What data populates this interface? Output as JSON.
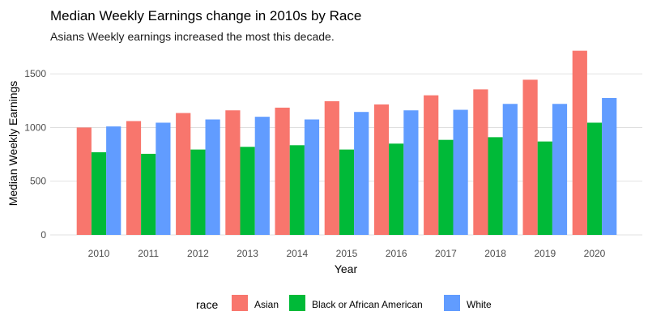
{
  "chart_data": {
    "type": "bar",
    "title": "Median Weekly Earnings change in 2010s by Race",
    "subtitle": "Asians Weekly earnings increased the most this decade.",
    "xlabel": "Year",
    "ylabel": "Median Weekly Earnings",
    "categories": [
      "2010",
      "2011",
      "2012",
      "2013",
      "2014",
      "2015",
      "2016",
      "2017",
      "2018",
      "2019",
      "2020"
    ],
    "series": [
      {
        "name": "Asian",
        "color": "#F8766D",
        "values": [
          1000,
          1060,
          1135,
          1160,
          1185,
          1245,
          1215,
          1300,
          1355,
          1445,
          1715
        ]
      },
      {
        "name": "Black or African American",
        "color": "#00BA38",
        "values": [
          770,
          755,
          795,
          820,
          835,
          795,
          850,
          885,
          910,
          870,
          1045
        ]
      },
      {
        "name": "White",
        "color": "#619CFF",
        "values": [
          1010,
          1045,
          1075,
          1100,
          1075,
          1145,
          1160,
          1165,
          1220,
          1220,
          1275
        ]
      }
    ],
    "ylim": [
      0,
      1750
    ],
    "yticks": [
      0,
      500,
      1000,
      1500
    ],
    "grid": true,
    "legend": {
      "title": "race",
      "position": "bottom"
    }
  }
}
